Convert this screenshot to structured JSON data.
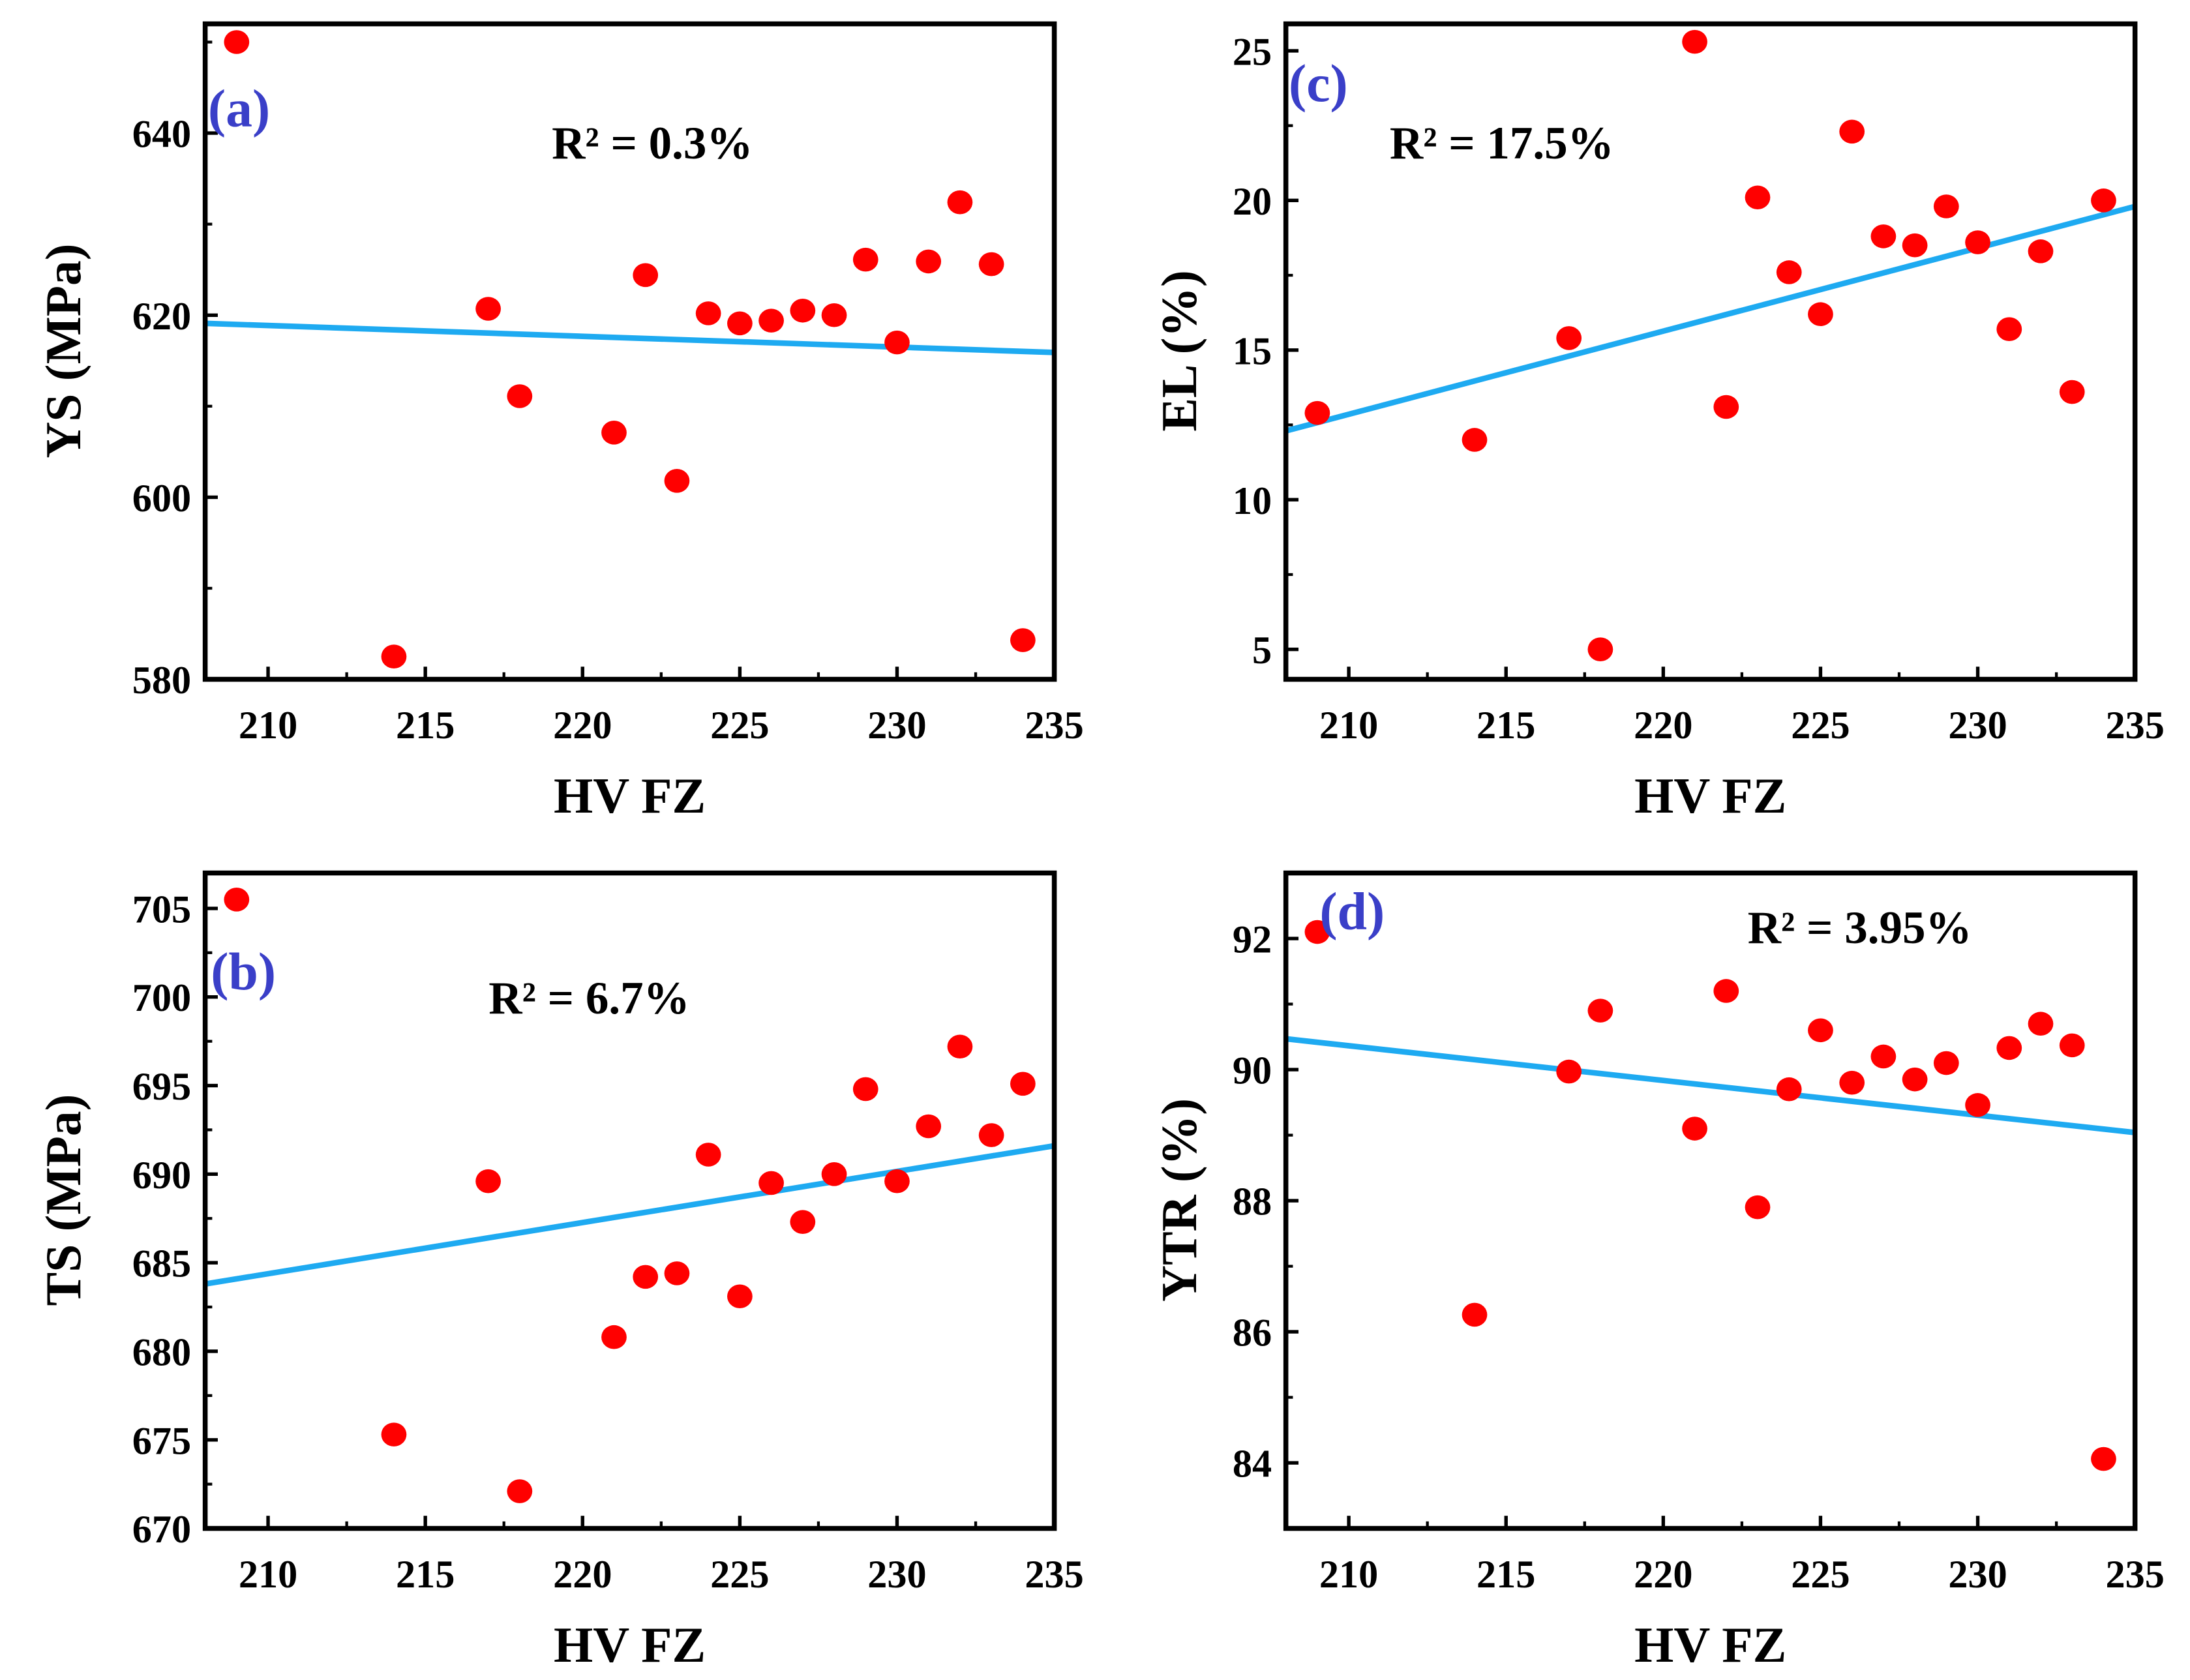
{
  "chart_data": [
    {
      "id": "a",
      "type": "scatter",
      "panel_label": "(a)",
      "r2_text": "R² = 0.3%",
      "xlabel": "HV FZ",
      "ylabel": "YS (MPa)",
      "xlim": [
        208,
        235
      ],
      "ylim": [
        580,
        652
      ],
      "xticks": [
        210,
        215,
        220,
        225,
        230,
        235
      ],
      "yticks": [
        580,
        600,
        620,
        640
      ],
      "yminor": 10,
      "x": [
        209,
        214,
        217,
        218,
        221,
        222,
        223,
        224,
        225,
        226,
        227,
        228,
        229,
        230,
        231,
        232,
        233,
        234
      ],
      "y": [
        650,
        582.5,
        620.7,
        611.1,
        607.1,
        624.4,
        601.8,
        620.2,
        619.1,
        619.4,
        620.5,
        620.0,
        626.1,
        617.0,
        625.9,
        632.4,
        625.6,
        584.3
      ],
      "fit": {
        "x": [
          208,
          235
        ],
        "y": [
          619.1,
          615.9
        ]
      },
      "colors": {
        "points": "#ff0000",
        "fit": "#1eaaf1",
        "label": "#3a3fc8"
      }
    },
    {
      "id": "c",
      "type": "scatter",
      "panel_label": "(c)",
      "r2_text": "R² = 17.5%",
      "xlabel": "HV FZ",
      "ylabel": "EL (%)",
      "xlim": [
        208,
        235
      ],
      "ylim": [
        4,
        25.9
      ],
      "xticks": [
        210,
        215,
        220,
        225,
        230,
        235
      ],
      "yticks": [
        5,
        10,
        15,
        20,
        25
      ],
      "yminor": 2.5,
      "x": [
        209,
        214,
        217,
        218,
        221,
        222,
        223,
        224,
        225,
        226,
        227,
        228,
        229,
        230,
        231,
        232,
        233,
        234
      ],
      "y": [
        12.9,
        12.0,
        15.4,
        5.0,
        25.3,
        13.1,
        20.1,
        17.6,
        16.2,
        22.3,
        18.8,
        18.5,
        19.8,
        18.6,
        15.7,
        18.3,
        13.6,
        20.0
      ],
      "fit": {
        "x": [
          208,
          235
        ],
        "y": [
          12.3,
          19.8
        ]
      },
      "colors": {
        "points": "#ff0000",
        "fit": "#1eaaf1",
        "label": "#3a3fc8"
      }
    },
    {
      "id": "b",
      "type": "scatter",
      "panel_label": "(b)",
      "r2_text": "R² = 6.7%",
      "xlabel": "HV FZ",
      "ylabel": "TS (MPa)",
      "xlim": [
        208,
        235
      ],
      "ylim": [
        670,
        707
      ],
      "xticks": [
        210,
        215,
        220,
        225,
        230,
        235
      ],
      "yticks": [
        670,
        675,
        680,
        685,
        690,
        695,
        700,
        705
      ],
      "yminor": 2.5,
      "x": [
        209,
        214,
        217,
        218,
        221,
        222,
        223,
        224,
        225,
        226,
        227,
        228,
        229,
        230,
        231,
        232,
        233,
        234
      ],
      "y": [
        705.5,
        675.3,
        689.6,
        672.1,
        680.8,
        684.2,
        684.4,
        691.1,
        683.1,
        689.5,
        687.3,
        690.0,
        694.8,
        689.6,
        692.7,
        697.2,
        692.2,
        695.1
      ],
      "fit": {
        "x": [
          208,
          235
        ],
        "y": [
          683.8,
          691.6
        ]
      },
      "colors": {
        "points": "#ff0000",
        "fit": "#1eaaf1",
        "label": "#3a3fc8"
      }
    },
    {
      "id": "d",
      "type": "scatter",
      "panel_label": "(d)",
      "r2_text": "R² = 3.95%",
      "xlabel": "HV FZ",
      "ylabel": "YTR (%)",
      "xlim": [
        208,
        235
      ],
      "ylim": [
        83,
        93
      ],
      "xticks": [
        210,
        215,
        220,
        225,
        230,
        235
      ],
      "yticks": [
        84,
        86,
        88,
        90,
        92
      ],
      "yminor": 1,
      "x": [
        209,
        214,
        217,
        218,
        221,
        222,
        223,
        224,
        225,
        226,
        227,
        228,
        229,
        230,
        231,
        232,
        233,
        234
      ],
      "y": [
        92.1,
        86.26,
        89.97,
        90.9,
        89.1,
        91.2,
        87.9,
        89.7,
        90.6,
        89.8,
        90.2,
        89.85,
        90.1,
        89.46,
        90.33,
        90.7,
        90.37,
        84.06
      ],
      "fit": {
        "x": [
          208,
          235
        ],
        "y": [
          90.47,
          89.04
        ]
      },
      "colors": {
        "points": "#ff0000",
        "fit": "#1eaaf1",
        "label": "#3a3fc8"
      }
    }
  ]
}
